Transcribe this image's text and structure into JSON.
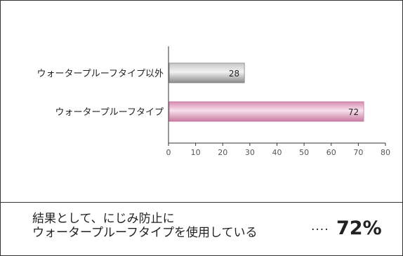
{
  "chart_data": {
    "type": "bar",
    "orientation": "horizontal",
    "categories": [
      "ウォータープルーフタイプ以外",
      "ウォータープルーフタイプ"
    ],
    "values": [
      28,
      72
    ],
    "value_labels": [
      "28",
      "72"
    ],
    "bar_colors": [
      "#a9a9a9",
      "#e0a6c2"
    ],
    "xlim": [
      0,
      80
    ],
    "xticks": [
      "0",
      "10",
      "20",
      "30",
      "40",
      "50",
      "60",
      "70",
      "80"
    ],
    "grid": false,
    "legend": "none"
  },
  "summary": {
    "line1": "結果として、にじみ防止に",
    "line2": "ウォータープルーフタイプを使用している",
    "dots": "····",
    "result": "72%"
  }
}
